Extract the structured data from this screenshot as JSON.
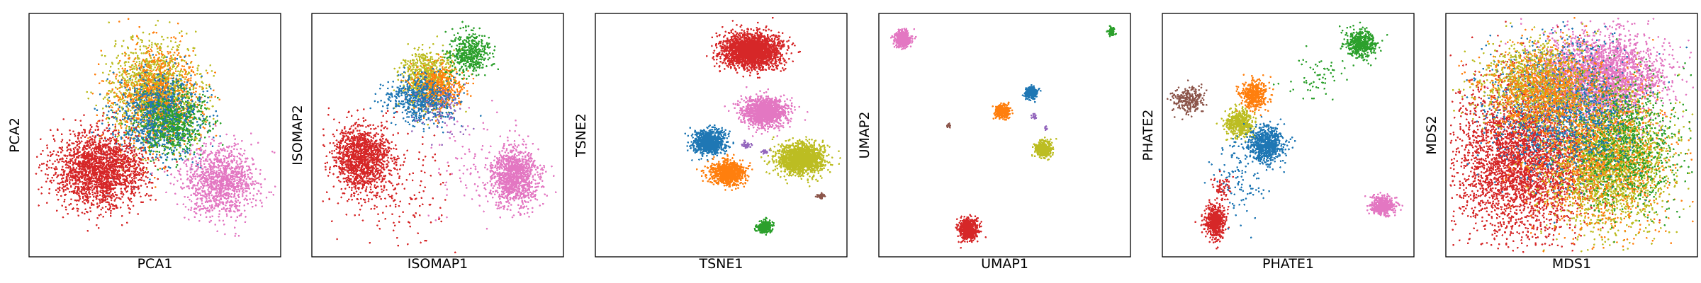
{
  "palette": {
    "blue": "#1f77b4",
    "orange": "#ff7f0e",
    "green": "#2ca02c",
    "red": "#d62728",
    "purple": "#9467bd",
    "brown": "#8c564b",
    "pink": "#e377c2",
    "olive": "#bcbd22"
  },
  "chart_data": [
    {
      "type": "scatter",
      "xlabel": "PCA1",
      "ylabel": "PCA2",
      "ticks": "none",
      "grid": false,
      "legend": "none",
      "xlim": [
        0,
        100
      ],
      "ylim": [
        0,
        100
      ],
      "clusters": [
        {
          "color": "olive",
          "cx": 50,
          "cy": 68,
          "sx": 9,
          "sy": 11,
          "n": 1400
        },
        {
          "color": "orange",
          "cx": 51,
          "cy": 66,
          "sx": 9,
          "sy": 11,
          "n": 900
        },
        {
          "color": "blue",
          "cx": 52,
          "cy": 58,
          "sx": 9,
          "sy": 9,
          "n": 900
        },
        {
          "color": "green",
          "cx": 58,
          "cy": 55,
          "sx": 7,
          "sy": 7,
          "n": 500
        },
        {
          "color": "red",
          "cx": 27,
          "cy": 35,
          "sx": 9,
          "sy": 8,
          "n": 2000
        },
        {
          "color": "pink",
          "cx": 77,
          "cy": 30,
          "sx": 7,
          "sy": 7.5,
          "n": 1100
        }
      ]
    },
    {
      "type": "scatter",
      "xlabel": "ISOMAP1",
      "ylabel": "ISOMAP2",
      "ticks": "none",
      "grid": false,
      "legend": "none",
      "xlim": [
        0,
        100
      ],
      "ylim": [
        0,
        100
      ],
      "clusters": [
        {
          "color": "red",
          "cx": 19,
          "cy": 40,
          "sx": 6,
          "sy": 7,
          "n": 1300
        },
        {
          "color": "red",
          "cx": 35,
          "cy": 25,
          "sx": 10,
          "sy": 12,
          "n": 150
        },
        {
          "color": "olive",
          "cx": 46,
          "cy": 74,
          "sx": 5,
          "sy": 6,
          "n": 700
        },
        {
          "color": "orange",
          "cx": 50,
          "cy": 70,
          "sx": 5,
          "sy": 5,
          "n": 500
        },
        {
          "color": "blue",
          "cx": 43,
          "cy": 65,
          "sx": 7,
          "sy": 5,
          "n": 550
        },
        {
          "color": "green",
          "cx": 63,
          "cy": 85,
          "sx": 4,
          "sy": 5,
          "n": 450
        },
        {
          "color": "pink",
          "cx": 82,
          "cy": 32,
          "sx": 5,
          "sy": 6,
          "n": 1100
        },
        {
          "color": "pink",
          "cx": 65,
          "cy": 35,
          "sx": 9,
          "sy": 12,
          "n": 100
        },
        {
          "color": "purple",
          "cx": 52,
          "cy": 60,
          "sx": 6,
          "sy": 5,
          "n": 80
        }
      ]
    },
    {
      "type": "scatter",
      "xlabel": "TSNE1",
      "ylabel": "TSNE2",
      "ticks": "none",
      "grid": false,
      "legend": "none",
      "xlim": [
        0,
        100
      ],
      "ylim": [
        0,
        100
      ],
      "clusters": [
        {
          "color": "red",
          "cx": 62,
          "cy": 86,
          "sx": 6,
          "sy": 3.6,
          "n": 2200
        },
        {
          "color": "pink",
          "cx": 68,
          "cy": 60,
          "sx": 4.5,
          "sy": 2.9,
          "n": 1400
        },
        {
          "color": "blue",
          "cx": 45,
          "cy": 47,
          "sx": 3.2,
          "sy": 2.6,
          "n": 900
        },
        {
          "color": "orange",
          "cx": 53,
          "cy": 34,
          "sx": 3.6,
          "sy": 2.5,
          "n": 900
        },
        {
          "color": "olive",
          "cx": 83,
          "cy": 40,
          "sx": 4.8,
          "sy": 3.2,
          "n": 1600
        },
        {
          "color": "green",
          "cx": 68,
          "cy": 11,
          "sx": 1.6,
          "sy": 1.2,
          "n": 260
        },
        {
          "color": "brown",
          "cx": 91,
          "cy": 24,
          "sx": 0.9,
          "sy": 0.6,
          "n": 40
        },
        {
          "color": "purple",
          "cx": 60,
          "cy": 46,
          "sx": 1,
          "sy": 0.6,
          "n": 40
        },
        {
          "color": "purple",
          "cx": 68,
          "cy": 43,
          "sx": 0.7,
          "sy": 0.5,
          "n": 20
        }
      ]
    },
    {
      "type": "scatter",
      "xlabel": "UMAP1",
      "ylabel": "UMAP2",
      "ticks": "none",
      "grid": false,
      "legend": "none",
      "xlim": [
        0,
        100
      ],
      "ylim": [
        0,
        100
      ],
      "clusters": [
        {
          "color": "pink",
          "cx": 8,
          "cy": 91,
          "sx": 1.6,
          "sy": 1.6,
          "n": 500
        },
        {
          "color": "green",
          "cx": 94,
          "cy": 94,
          "sx": 0.7,
          "sy": 0.9,
          "n": 100
        },
        {
          "color": "blue",
          "cx": 61,
          "cy": 68,
          "sx": 1.1,
          "sy": 1.3,
          "n": 300
        },
        {
          "color": "orange",
          "cx": 49,
          "cy": 60,
          "sx": 1.4,
          "sy": 1.4,
          "n": 350
        },
        {
          "color": "olive",
          "cx": 66,
          "cy": 44,
          "sx": 1.6,
          "sy": 1.8,
          "n": 450
        },
        {
          "color": "red",
          "cx": 35,
          "cy": 10,
          "sx": 1.9,
          "sy": 2.2,
          "n": 600
        },
        {
          "color": "brown",
          "cx": 27,
          "cy": 54,
          "sx": 0.4,
          "sy": 0.4,
          "n": 15
        },
        {
          "color": "purple",
          "cx": 62,
          "cy": 58,
          "sx": 0.6,
          "sy": 0.6,
          "n": 15
        },
        {
          "color": "purple",
          "cx": 67,
          "cy": 53,
          "sx": 0.4,
          "sy": 0.4,
          "n": 10
        }
      ]
    },
    {
      "type": "scatter",
      "xlabel": "PHATE1",
      "ylabel": "PHATE2",
      "ticks": "none",
      "grid": false,
      "legend": "none",
      "xlim": [
        0,
        100
      ],
      "ylim": [
        0,
        100
      ],
      "clusters": [
        {
          "color": "green",
          "cx": 80,
          "cy": 89,
          "sx": 3,
          "sy": 2.8,
          "n": 500
        },
        {
          "color": "brown",
          "cx": 9,
          "cy": 65,
          "sx": 3,
          "sy": 2.5,
          "n": 250
        },
        {
          "color": "orange",
          "cx": 36,
          "cy": 67,
          "sx": 2.7,
          "sy": 3,
          "n": 450
        },
        {
          "color": "olive",
          "cx": 30,
          "cy": 55,
          "sx": 2.7,
          "sy": 2.8,
          "n": 450
        },
        {
          "color": "blue",
          "cx": 41,
          "cy": 46,
          "sx": 3.5,
          "sy": 3.8,
          "n": 700
        },
        {
          "color": "red",
          "cx": 20,
          "cy": 13,
          "sx": 2,
          "sy": 3.5,
          "n": 550
        },
        {
          "color": "pink",
          "cx": 89,
          "cy": 20,
          "sx": 2.5,
          "sy": 2,
          "n": 450
        },
        {
          "color": "green",
          "cx": 62,
          "cy": 75,
          "sx": 6,
          "sy": 5,
          "n": 60
        },
        {
          "color": "blue",
          "cx": 30,
          "cy": 35,
          "sx": 6,
          "sy": 10,
          "n": 120
        },
        {
          "color": "red",
          "cx": 23,
          "cy": 27,
          "sx": 2,
          "sy": 4,
          "n": 60
        }
      ]
    },
    {
      "type": "scatter",
      "xlabel": "MDS1",
      "ylabel": "MDS2",
      "ticks": "none",
      "grid": false,
      "legend": "none",
      "xlim": [
        0,
        100
      ],
      "ylim": [
        0,
        100
      ],
      "clusters": [
        {
          "color": "red",
          "cx": 30,
          "cy": 40,
          "sx": 14,
          "sy": 17,
          "n": 3600
        },
        {
          "color": "pink",
          "cx": 62,
          "cy": 75,
          "sx": 13,
          "sy": 9,
          "n": 2600
        },
        {
          "color": "olive",
          "cx": 66,
          "cy": 38,
          "sx": 12,
          "sy": 14,
          "n": 2200
        },
        {
          "color": "orange",
          "cx": 62,
          "cy": 42,
          "sx": 14,
          "sy": 16,
          "n": 1200
        },
        {
          "color": "green",
          "cx": 72,
          "cy": 47,
          "sx": 12,
          "sy": 14,
          "n": 900
        },
        {
          "color": "blue",
          "cx": 45,
          "cy": 62,
          "sx": 14,
          "sy": 14,
          "n": 1300
        },
        {
          "color": "olive",
          "cx": 35,
          "cy": 72,
          "sx": 12,
          "sy": 9,
          "n": 1000
        },
        {
          "color": "orange",
          "cx": 38,
          "cy": 70,
          "sx": 12,
          "sy": 9,
          "n": 800
        }
      ]
    }
  ]
}
